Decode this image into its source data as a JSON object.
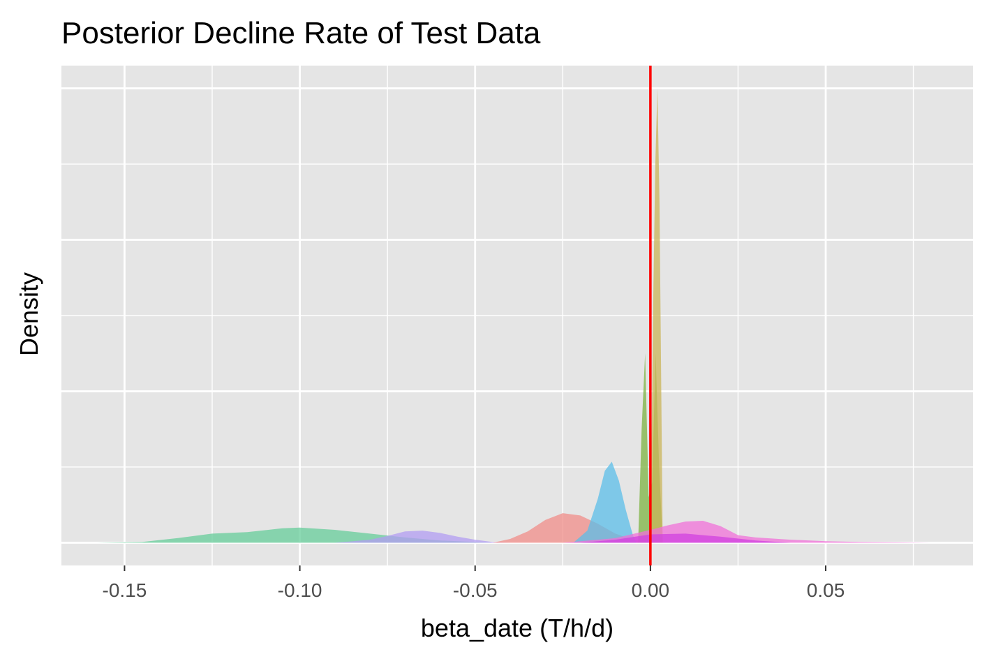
{
  "chart_data": {
    "type": "area",
    "title": "Posterior Decline Rate of Test Data",
    "xlabel": "beta_date (T/h/d)",
    "ylabel": "Density",
    "xlim": [
      -0.168,
      0.092
    ],
    "ylim": [
      -0.3,
      6.3
    ],
    "x_ticks": [
      -0.15,
      -0.1,
      -0.05,
      0.0,
      0.05
    ],
    "x_tick_labels": [
      "-0.15",
      "-0.10",
      "-0.05",
      "0.00",
      "0.05"
    ],
    "y_ticks": [
      0,
      2,
      4,
      6
    ],
    "y_tick_labels": [],
    "grid": true,
    "legend": "none",
    "reference_line": {
      "x": 0.0,
      "color": "#ff0000"
    },
    "series": [
      {
        "color": "#66cc99",
        "x": [
          -0.158,
          -0.145,
          -0.135,
          -0.125,
          -0.115,
          -0.105,
          -0.1,
          -0.09,
          -0.08,
          -0.07,
          -0.06,
          -0.05,
          -0.045
        ],
        "y": [
          0.0,
          0.01,
          0.06,
          0.12,
          0.14,
          0.19,
          0.2,
          0.17,
          0.12,
          0.07,
          0.03,
          0.01,
          0.0
        ]
      },
      {
        "color": "#b19cf2",
        "x": [
          -0.09,
          -0.08,
          -0.075,
          -0.07,
          -0.065,
          -0.06,
          -0.055,
          -0.05,
          -0.045,
          -0.04
        ],
        "y": [
          0.0,
          0.04,
          0.09,
          0.15,
          0.16,
          0.13,
          0.08,
          0.04,
          0.01,
          0.0
        ]
      },
      {
        "color": "#f08c88",
        "x": [
          -0.045,
          -0.04,
          -0.035,
          -0.03,
          -0.025,
          -0.02,
          -0.015,
          -0.01,
          -0.005,
          0.0,
          0.005
        ],
        "y": [
          0.0,
          0.05,
          0.15,
          0.3,
          0.39,
          0.36,
          0.25,
          0.12,
          0.04,
          0.01,
          0.0
        ]
      },
      {
        "color": "#5bbde8",
        "x": [
          -0.022,
          -0.018,
          -0.015,
          -0.013,
          -0.011,
          -0.009,
          -0.007,
          -0.005,
          -0.004
        ],
        "y": [
          0.0,
          0.16,
          0.58,
          0.95,
          1.07,
          0.82,
          0.43,
          0.1,
          0.0
        ]
      },
      {
        "color": "#7cb342",
        "x": [
          -0.0035,
          -0.0025,
          -0.0015,
          -0.0005,
          0.0005,
          0.0015,
          0.0025,
          0.0035
        ],
        "y": [
          0.0,
          1.5,
          2.5,
          0.6,
          0.8,
          2.5,
          1.0,
          0.0
        ]
      },
      {
        "color": "#c9b458",
        "x": [
          0.0,
          0.0008,
          0.0014,
          0.002,
          0.0026,
          0.0035
        ],
        "y": [
          0.0,
          3.2,
          5.0,
          6.0,
          4.5,
          0.0
        ]
      },
      {
        "color": "#f070d8",
        "x": [
          -0.025,
          -0.01,
          0.0,
          0.005,
          0.01,
          0.015,
          0.02,
          0.025,
          0.03,
          0.04,
          0.05,
          0.06,
          0.07,
          0.08
        ],
        "y": [
          0.0,
          0.06,
          0.17,
          0.23,
          0.28,
          0.29,
          0.22,
          0.1,
          0.07,
          0.04,
          0.02,
          0.01,
          0.005,
          0.0
        ]
      },
      {
        "color": "#d040e0",
        "x": [
          -0.02,
          -0.01,
          0.0,
          0.01,
          0.02,
          0.03,
          0.04
        ],
        "y": [
          0.0,
          0.04,
          0.11,
          0.12,
          0.08,
          0.03,
          0.0
        ]
      }
    ]
  }
}
